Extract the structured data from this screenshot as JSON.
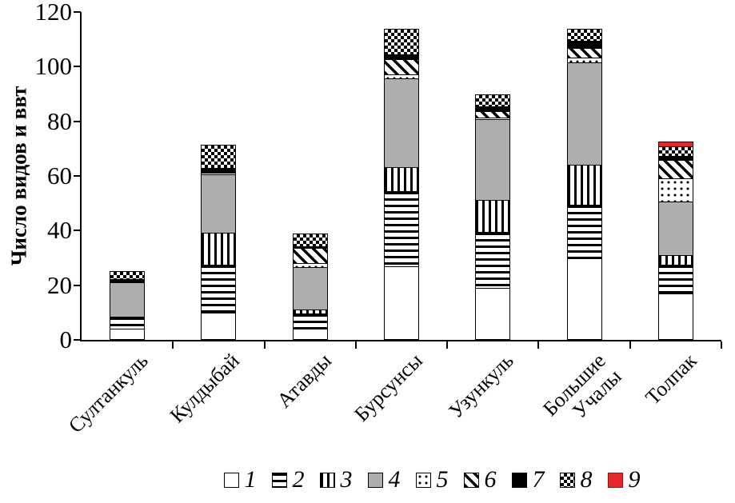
{
  "chart_data": {
    "type": "bar",
    "subtype": "stacked-bar",
    "title": "",
    "ylabel": "Число видов и ввт",
    "xlabel": "",
    "ylim": [
      0,
      120
    ],
    "yticks": [
      0,
      20,
      40,
      60,
      80,
      100,
      120
    ],
    "grid": false,
    "legend_position": "bottom",
    "categories": [
      "Султанкуль",
      "Кулдыбай",
      "Атавды",
      "Бурсунсы",
      "Узункуль",
      "Большие Учалы",
      "Толпак"
    ],
    "series": [
      {
        "name": "1",
        "pattern": "plain-white",
        "values": [
          4,
          10,
          4,
          27,
          19,
          30,
          17
        ]
      },
      {
        "name": "2",
        "pattern": "horizontal-stripes",
        "values": [
          5,
          18,
          6,
          28,
          21,
          20,
          11
        ]
      },
      {
        "name": "3",
        "pattern": "vertical-stripes",
        "values": [
          0,
          12,
          2,
          9,
          12,
          15,
          4
        ]
      },
      {
        "name": "4",
        "pattern": "solid-gray",
        "values": [
          13,
          22,
          16,
          33,
          30,
          38,
          20
        ]
      },
      {
        "name": "5",
        "pattern": "dots",
        "values": [
          0,
          1,
          2,
          2,
          1,
          2,
          9
        ]
      },
      {
        "name": "6",
        "pattern": "diagonal-stripes",
        "values": [
          0,
          0,
          6,
          6,
          3,
          4,
          7
        ]
      },
      {
        "name": "7",
        "pattern": "solid-black",
        "values": [
          1.5,
          2,
          1,
          2,
          2,
          3,
          2
        ]
      },
      {
        "name": "8",
        "pattern": "checkerboard",
        "values": [
          3.5,
          9,
          5,
          10,
          5,
          5,
          4
        ]
      },
      {
        "name": "9",
        "pattern": "solid-red",
        "values": [
          0,
          0,
          0,
          0,
          0,
          0,
          2
        ]
      }
    ],
    "totals": [
      27,
      74,
      42,
      117,
      93,
      117,
      76
    ],
    "legend": [
      {
        "label": "1",
        "pattern": "plain-white"
      },
      {
        "label": "2",
        "pattern": "horizontal-stripes"
      },
      {
        "label": "3",
        "pattern": "vertical-stripes"
      },
      {
        "label": "4",
        "pattern": "solid-gray"
      },
      {
        "label": "5",
        "pattern": "dots"
      },
      {
        "label": "6",
        "pattern": "diagonal-stripes"
      },
      {
        "label": "7",
        "pattern": "solid-black"
      },
      {
        "label": "8",
        "pattern": "checkerboard"
      },
      {
        "label": "9",
        "pattern": "solid-red"
      }
    ],
    "colors": {
      "gray": "#aeaeae",
      "red": "#e4272b",
      "black": "#000000",
      "white": "#ffffff"
    }
  }
}
